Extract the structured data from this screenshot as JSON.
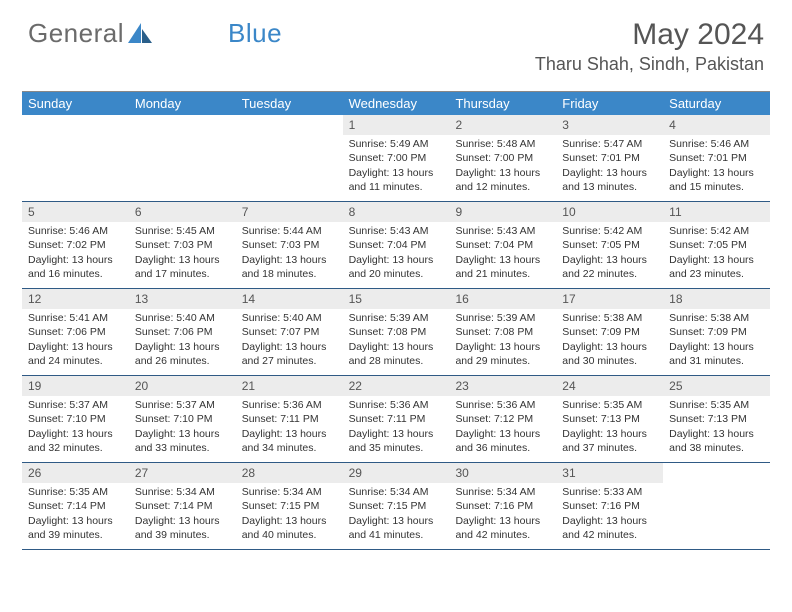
{
  "brand": {
    "part1": "General",
    "part2": "Blue"
  },
  "title": "May 2024",
  "location": "Tharu Shah, Sindh, Pakistan",
  "colors": {
    "header_bg": "#3b87c8",
    "header_text": "#ffffff",
    "daynum_bg": "#ececec",
    "week_border": "#2f5a85",
    "brand_gray": "#6b6b6b",
    "brand_blue": "#3b87c8"
  },
  "weekdays": [
    "Sunday",
    "Monday",
    "Tuesday",
    "Wednesday",
    "Thursday",
    "Friday",
    "Saturday"
  ],
  "weeks": [
    [
      {
        "n": "",
        "sr": "",
        "ss": "",
        "dl": ""
      },
      {
        "n": "",
        "sr": "",
        "ss": "",
        "dl": ""
      },
      {
        "n": "",
        "sr": "",
        "ss": "",
        "dl": ""
      },
      {
        "n": "1",
        "sr": "Sunrise: 5:49 AM",
        "ss": "Sunset: 7:00 PM",
        "dl": "Daylight: 13 hours and 11 minutes."
      },
      {
        "n": "2",
        "sr": "Sunrise: 5:48 AM",
        "ss": "Sunset: 7:00 PM",
        "dl": "Daylight: 13 hours and 12 minutes."
      },
      {
        "n": "3",
        "sr": "Sunrise: 5:47 AM",
        "ss": "Sunset: 7:01 PM",
        "dl": "Daylight: 13 hours and 13 minutes."
      },
      {
        "n": "4",
        "sr": "Sunrise: 5:46 AM",
        "ss": "Sunset: 7:01 PM",
        "dl": "Daylight: 13 hours and 15 minutes."
      }
    ],
    [
      {
        "n": "5",
        "sr": "Sunrise: 5:46 AM",
        "ss": "Sunset: 7:02 PM",
        "dl": "Daylight: 13 hours and 16 minutes."
      },
      {
        "n": "6",
        "sr": "Sunrise: 5:45 AM",
        "ss": "Sunset: 7:03 PM",
        "dl": "Daylight: 13 hours and 17 minutes."
      },
      {
        "n": "7",
        "sr": "Sunrise: 5:44 AM",
        "ss": "Sunset: 7:03 PM",
        "dl": "Daylight: 13 hours and 18 minutes."
      },
      {
        "n": "8",
        "sr": "Sunrise: 5:43 AM",
        "ss": "Sunset: 7:04 PM",
        "dl": "Daylight: 13 hours and 20 minutes."
      },
      {
        "n": "9",
        "sr": "Sunrise: 5:43 AM",
        "ss": "Sunset: 7:04 PM",
        "dl": "Daylight: 13 hours and 21 minutes."
      },
      {
        "n": "10",
        "sr": "Sunrise: 5:42 AM",
        "ss": "Sunset: 7:05 PM",
        "dl": "Daylight: 13 hours and 22 minutes."
      },
      {
        "n": "11",
        "sr": "Sunrise: 5:42 AM",
        "ss": "Sunset: 7:05 PM",
        "dl": "Daylight: 13 hours and 23 minutes."
      }
    ],
    [
      {
        "n": "12",
        "sr": "Sunrise: 5:41 AM",
        "ss": "Sunset: 7:06 PM",
        "dl": "Daylight: 13 hours and 24 minutes."
      },
      {
        "n": "13",
        "sr": "Sunrise: 5:40 AM",
        "ss": "Sunset: 7:06 PM",
        "dl": "Daylight: 13 hours and 26 minutes."
      },
      {
        "n": "14",
        "sr": "Sunrise: 5:40 AM",
        "ss": "Sunset: 7:07 PM",
        "dl": "Daylight: 13 hours and 27 minutes."
      },
      {
        "n": "15",
        "sr": "Sunrise: 5:39 AM",
        "ss": "Sunset: 7:08 PM",
        "dl": "Daylight: 13 hours and 28 minutes."
      },
      {
        "n": "16",
        "sr": "Sunrise: 5:39 AM",
        "ss": "Sunset: 7:08 PM",
        "dl": "Daylight: 13 hours and 29 minutes."
      },
      {
        "n": "17",
        "sr": "Sunrise: 5:38 AM",
        "ss": "Sunset: 7:09 PM",
        "dl": "Daylight: 13 hours and 30 minutes."
      },
      {
        "n": "18",
        "sr": "Sunrise: 5:38 AM",
        "ss": "Sunset: 7:09 PM",
        "dl": "Daylight: 13 hours and 31 minutes."
      }
    ],
    [
      {
        "n": "19",
        "sr": "Sunrise: 5:37 AM",
        "ss": "Sunset: 7:10 PM",
        "dl": "Daylight: 13 hours and 32 minutes."
      },
      {
        "n": "20",
        "sr": "Sunrise: 5:37 AM",
        "ss": "Sunset: 7:10 PM",
        "dl": "Daylight: 13 hours and 33 minutes."
      },
      {
        "n": "21",
        "sr": "Sunrise: 5:36 AM",
        "ss": "Sunset: 7:11 PM",
        "dl": "Daylight: 13 hours and 34 minutes."
      },
      {
        "n": "22",
        "sr": "Sunrise: 5:36 AM",
        "ss": "Sunset: 7:11 PM",
        "dl": "Daylight: 13 hours and 35 minutes."
      },
      {
        "n": "23",
        "sr": "Sunrise: 5:36 AM",
        "ss": "Sunset: 7:12 PM",
        "dl": "Daylight: 13 hours and 36 minutes."
      },
      {
        "n": "24",
        "sr": "Sunrise: 5:35 AM",
        "ss": "Sunset: 7:13 PM",
        "dl": "Daylight: 13 hours and 37 minutes."
      },
      {
        "n": "25",
        "sr": "Sunrise: 5:35 AM",
        "ss": "Sunset: 7:13 PM",
        "dl": "Daylight: 13 hours and 38 minutes."
      }
    ],
    [
      {
        "n": "26",
        "sr": "Sunrise: 5:35 AM",
        "ss": "Sunset: 7:14 PM",
        "dl": "Daylight: 13 hours and 39 minutes."
      },
      {
        "n": "27",
        "sr": "Sunrise: 5:34 AM",
        "ss": "Sunset: 7:14 PM",
        "dl": "Daylight: 13 hours and 39 minutes."
      },
      {
        "n": "28",
        "sr": "Sunrise: 5:34 AM",
        "ss": "Sunset: 7:15 PM",
        "dl": "Daylight: 13 hours and 40 minutes."
      },
      {
        "n": "29",
        "sr": "Sunrise: 5:34 AM",
        "ss": "Sunset: 7:15 PM",
        "dl": "Daylight: 13 hours and 41 minutes."
      },
      {
        "n": "30",
        "sr": "Sunrise: 5:34 AM",
        "ss": "Sunset: 7:16 PM",
        "dl": "Daylight: 13 hours and 42 minutes."
      },
      {
        "n": "31",
        "sr": "Sunrise: 5:33 AM",
        "ss": "Sunset: 7:16 PM",
        "dl": "Daylight: 13 hours and 42 minutes."
      },
      {
        "n": "",
        "sr": "",
        "ss": "",
        "dl": ""
      }
    ]
  ]
}
